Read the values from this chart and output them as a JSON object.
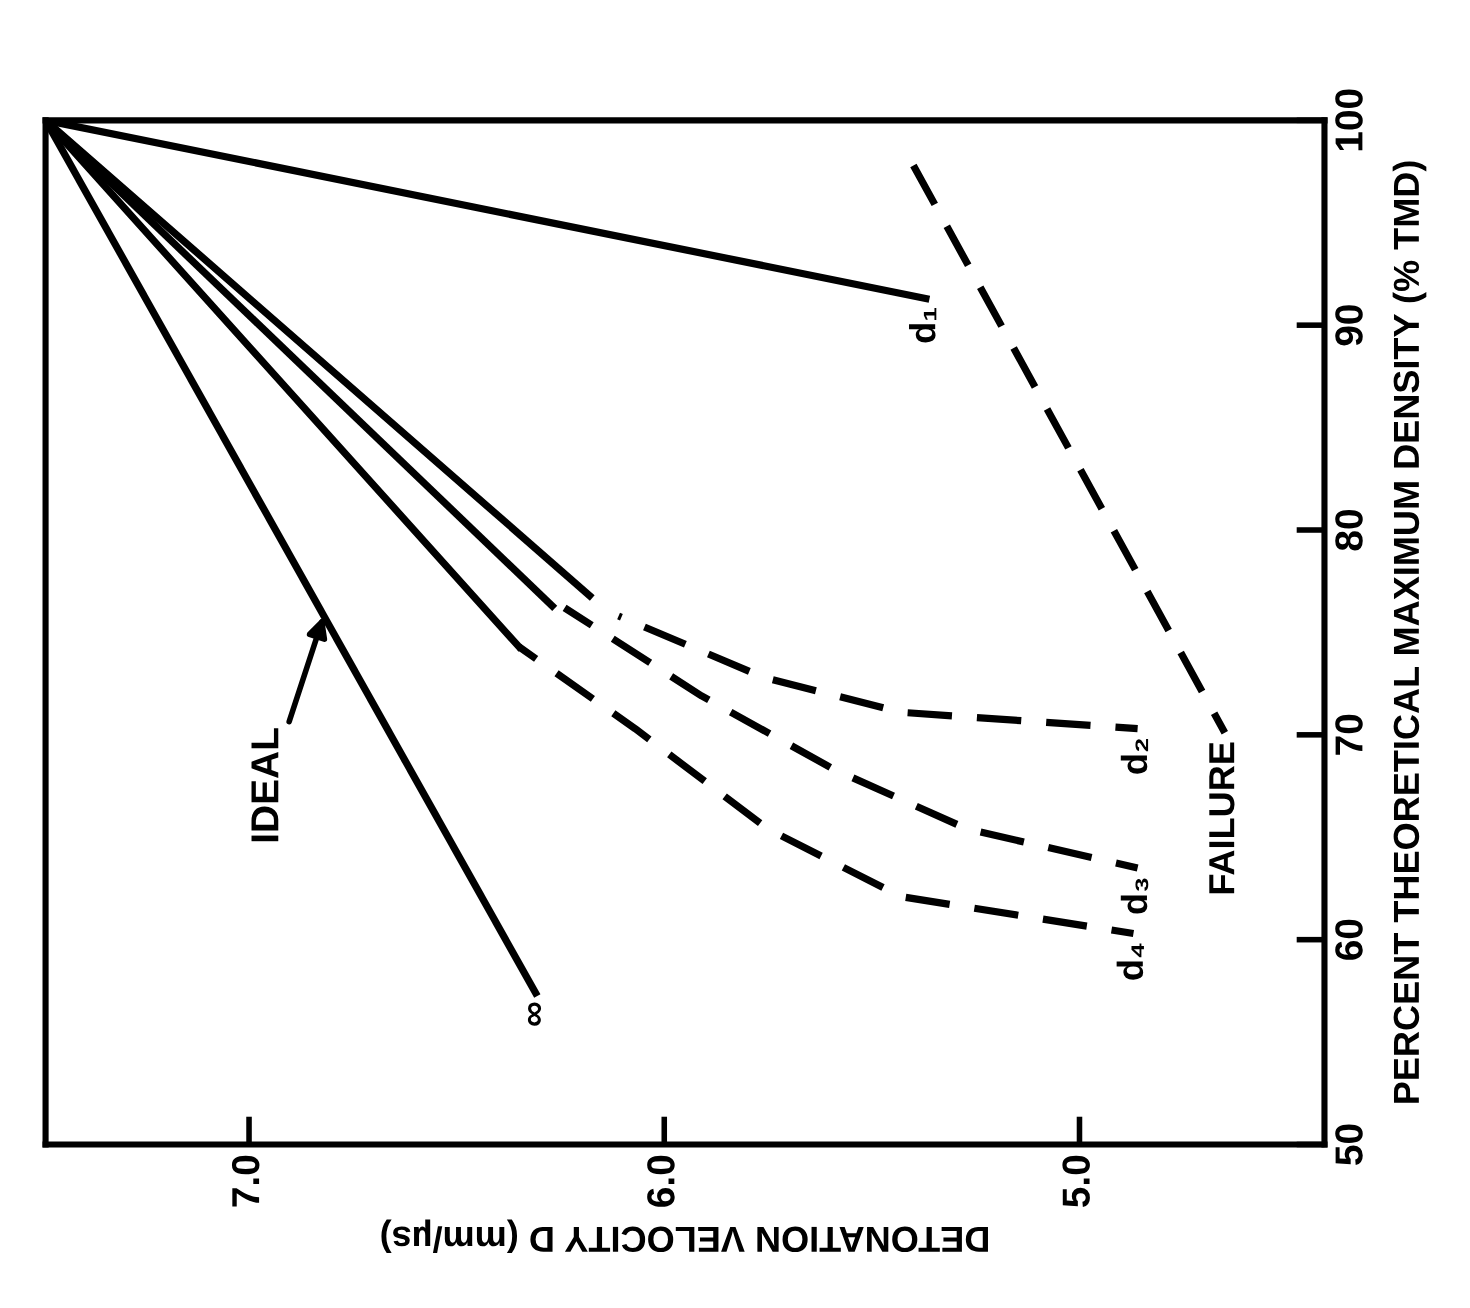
{
  "chart_data": {
    "type": "line",
    "xlabel": "DETONATION VELOCITY D (mm/µs)",
    "ylabel": "PERCENT THEORETICAL MAXIMUM DENSITY (% TMD)",
    "xlim": [
      7.49,
      4.41
    ],
    "ylim": [
      50,
      100
    ],
    "xticks": [
      {
        "value": 7,
        "label": "7.0"
      },
      {
        "value": 6,
        "label": "6.0"
      },
      {
        "value": 5,
        "label": "5.0"
      }
    ],
    "yticks": [
      50,
      60,
      70,
      80,
      90,
      100
    ],
    "grid": false,
    "legend": false,
    "marker": "none",
    "series": [
      {
        "name": "∞",
        "color": "#000000",
        "line_style": "solid",
        "x": [
          7.49,
          6.31
        ],
        "values": [
          100,
          57.4
        ]
      },
      {
        "name": "d₁",
        "color": "#000000",
        "line_style": "solid",
        "x": [
          7.49,
          5.37
        ],
        "values": [
          100,
          91.3
        ]
      },
      {
        "color": "#000000",
        "line_style": "solid",
        "x": [
          7.49,
          6.18
        ],
        "values": [
          100,
          76.8
        ]
      },
      {
        "name": "d₂",
        "color": "#000000",
        "line_style": "dashed",
        "x": [
          6.11,
          5.76,
          5.43,
          4.86
        ],
        "values": [
          75.8,
          72.8,
          71.1,
          70.3
        ]
      },
      {
        "color": "#000000",
        "line_style": "solid",
        "x": [
          7.49,
          6.27
        ],
        "values": [
          100,
          76.3
        ]
      },
      {
        "name": "d₃",
        "color": "#000000",
        "line_style": "dashed",
        "x": [
          6.24,
          5.91,
          5.59,
          5.27,
          4.86
        ],
        "values": [
          76.2,
          71.9,
          68.3,
          65.4,
          63.5
        ]
      },
      {
        "color": "#000000",
        "line_style": "solid",
        "x": [
          7.49,
          6.35
        ],
        "values": [
          100,
          74.3
        ]
      },
      {
        "name": "d₄",
        "color": "#000000",
        "line_style": "dashed",
        "x": [
          6.35,
          6.07,
          5.75,
          5.43,
          4.87
        ],
        "values": [
          74.3,
          70.3,
          65.4,
          62.1,
          60.3
        ]
      },
      {
        "name": "FAILURE",
        "color": "#000000",
        "line_style": "dashed",
        "x": [
          5.4,
          4.65
        ],
        "values": [
          97.8,
          70.1
        ]
      }
    ],
    "annotations": [
      {
        "text": "IDEAL",
        "x": 6.82,
        "y": 75.8
      }
    ]
  }
}
